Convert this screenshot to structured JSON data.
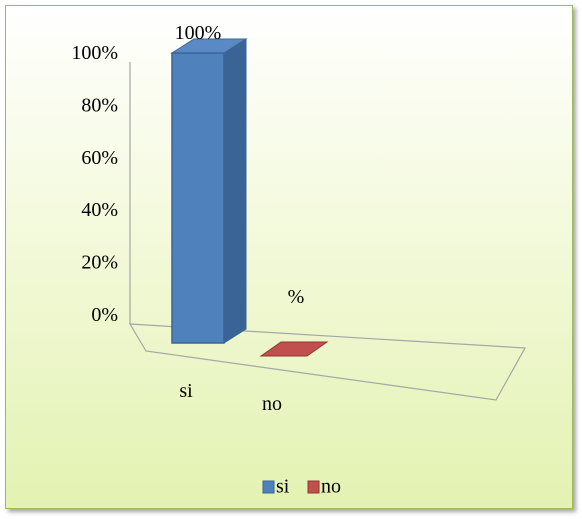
{
  "chart_data": {
    "type": "bar",
    "categories": [
      "si",
      "no"
    ],
    "series": [
      {
        "values": [
          100,
          0
        ]
      }
    ],
    "data_labels": [
      "100%",
      "%"
    ],
    "y_ticks": [
      "0%",
      "20%",
      "40%",
      "60%",
      "80%",
      "100%"
    ],
    "ylim": [
      0,
      100
    ],
    "three_d": true,
    "grid": false,
    "legend": {
      "position": "bottom",
      "entries": [
        {
          "label": "si",
          "color": "#4f81bd"
        },
        {
          "label": "no",
          "color": "#c0504d"
        }
      ]
    },
    "colors": {
      "si": "#4f81bd",
      "no": "#c0504d",
      "background": "#ebf5c6",
      "border": "#9bbb59"
    }
  }
}
